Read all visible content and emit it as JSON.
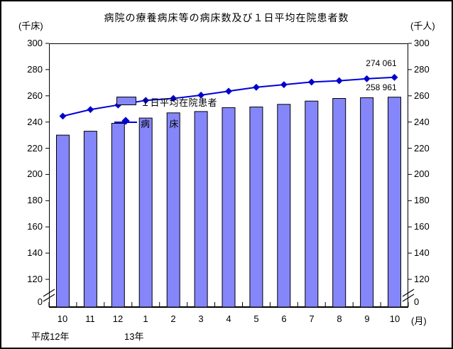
{
  "chart_data": {
    "type": "bar",
    "subtype": "bar-and-line-combo",
    "title": "病院の療養病床等の病床数及び１日平均在院患者数",
    "left_axis_unit": "(千床)",
    "right_axis_unit": "(千人)",
    "x_axis_unit": "(月)",
    "categories": [
      "10",
      "11",
      "12",
      "1",
      "2",
      "3",
      "4",
      "5",
      "6",
      "7",
      "8",
      "9",
      "10"
    ],
    "era_labels": [
      "平成12年",
      "13年"
    ],
    "y_ticks": [
      300,
      280,
      260,
      240,
      220,
      200,
      180,
      160,
      140,
      120
    ],
    "y_zero_label": "0",
    "ylim": [
      120,
      300
    ],
    "axis_break": true,
    "grid": false,
    "legend_position": "top-left",
    "series": [
      {
        "name": "１日平均在院患者",
        "type": "bar",
        "color": "#8586fa",
        "values": [
          230,
          233,
          239,
          243,
          247,
          248,
          251,
          251.5,
          253.5,
          256,
          258,
          258.5,
          258.961
        ]
      },
      {
        "name": "病　　床",
        "type": "line",
        "color": "#0000dd",
        "marker_color": "#0000cc",
        "values": [
          244.5,
          249.5,
          253,
          256.5,
          258,
          260.5,
          263.5,
          266.5,
          268.5,
          270.5,
          271.5,
          273,
          274.061
        ]
      }
    ],
    "annotations": [
      {
        "text": "274 061",
        "series": "病床",
        "category": "10"
      },
      {
        "text": "258 961",
        "series": "１日平均在院患者",
        "category": "10"
      }
    ],
    "axis_color": "#000000",
    "background_color": "#ffffff"
  }
}
